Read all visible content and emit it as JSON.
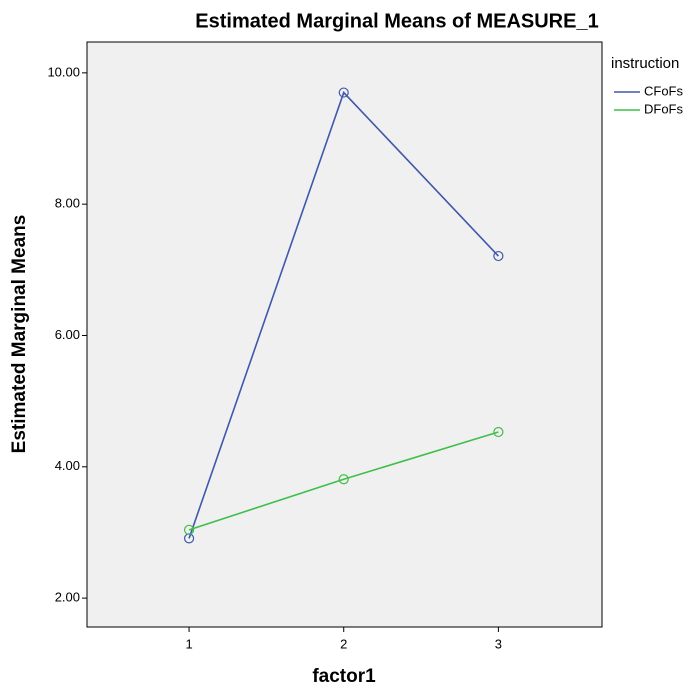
{
  "chart_data": {
    "type": "line",
    "title": "Estimated Marginal Means of MEASURE_1",
    "x_label": "factor1",
    "y_label": "Estimated Marginal Means",
    "legend_title": "instruction",
    "x": [
      1,
      2,
      3
    ],
    "series": [
      {
        "name": "CFoFs",
        "color": "#3e58ac",
        "values": [
          2.91,
          9.7,
          7.21
        ]
      },
      {
        "name": "DFoFs",
        "color": "#3fbf4a",
        "values": [
          3.04,
          3.81,
          4.53
        ]
      }
    ],
    "xlim": [
      0.34,
      3.67
    ],
    "xticks": [
      1,
      2,
      3
    ],
    "ylim": [
      1.56,
      10.47
    ],
    "yticks": [
      {
        "value": 2,
        "label": "2.00"
      },
      {
        "value": 4,
        "label": "4.00"
      },
      {
        "value": 6,
        "label": "6.00"
      },
      {
        "value": 8,
        "label": "8.00"
      },
      {
        "value": 10,
        "label": "10.00"
      }
    ],
    "legend_position": "right"
  }
}
